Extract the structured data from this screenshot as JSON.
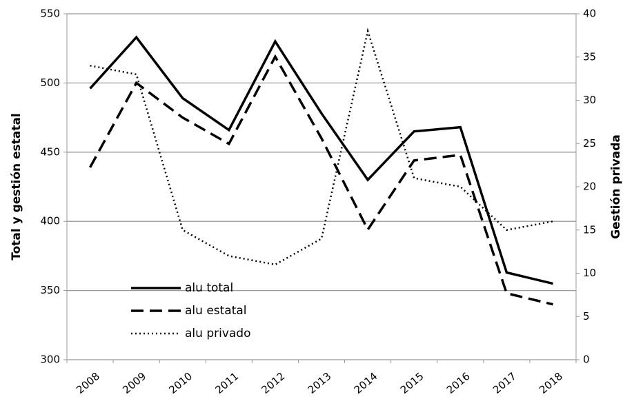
{
  "chart_data": {
    "type": "line",
    "categories": [
      "2008",
      "2009",
      "2010",
      "2011",
      "2012",
      "2013",
      "2014",
      "2015",
      "2016",
      "2017",
      "2018"
    ],
    "ylabel": "Total y gestión estatal",
    "y2label": "Gestión privada",
    "ylim": [
      300,
      550
    ],
    "yticks": [
      300,
      350,
      400,
      450,
      500,
      550
    ],
    "y2lim": [
      0,
      40
    ],
    "y2ticks": [
      0,
      5,
      10,
      15,
      20,
      25,
      30,
      35,
      40
    ],
    "grid": true,
    "legend": "bottom-left",
    "series": [
      {
        "name": "alu total",
        "color": "#000000",
        "dash": "solid",
        "values": [
          496,
          533,
          489,
          466,
          530,
          478,
          430,
          465,
          468,
          363,
          355
        ]
      },
      {
        "name": "alu estatal",
        "color": "#000000",
        "dash": "dashed",
        "values": [
          439,
          500,
          475,
          456,
          519,
          460,
          394,
          444,
          448,
          348,
          340
        ]
      },
      {
        "name": "alu privado",
        "color": "#000000",
        "dash": "dotted",
        "axis": "y2",
        "values": [
          34,
          33,
          15,
          12,
          11,
          14,
          38,
          21,
          20,
          15,
          16
        ]
      }
    ]
  }
}
